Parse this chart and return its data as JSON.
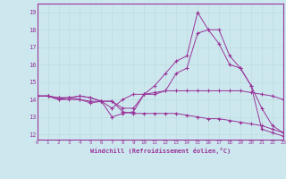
{
  "background_color": "#cce8ee",
  "line_color": "#993399",
  "grid_color": "#aadddd",
  "xlim": [
    0,
    23
  ],
  "ylim": [
    11.7,
    19.5
  ],
  "xlabel": "Windchill (Refroidissement éolien,°C)",
  "yticks": [
    12,
    13,
    14,
    15,
    16,
    17,
    18,
    19
  ],
  "xticks": [
    0,
    1,
    2,
    3,
    4,
    5,
    6,
    7,
    8,
    9,
    10,
    11,
    12,
    13,
    14,
    15,
    16,
    17,
    18,
    19,
    20,
    21,
    22,
    23
  ],
  "lines": [
    [
      14.2,
      14.2,
      14.1,
      14.1,
      14.2,
      14.1,
      13.9,
      13.0,
      13.2,
      13.3,
      14.3,
      14.3,
      14.5,
      15.5,
      15.8,
      17.8,
      18.0,
      17.2,
      16.0,
      15.8,
      14.8,
      12.3,
      12.1,
      11.9
    ],
    [
      14.2,
      14.2,
      14.1,
      14.1,
      14.2,
      14.1,
      13.9,
      13.5,
      14.0,
      14.3,
      14.3,
      14.4,
      14.5,
      14.5,
      14.5,
      14.5,
      14.5,
      14.5,
      14.5,
      14.5,
      14.4,
      14.3,
      14.2,
      14.0
    ],
    [
      14.2,
      14.2,
      14.0,
      14.0,
      14.0,
      13.9,
      13.9,
      13.9,
      13.5,
      13.5,
      14.3,
      14.8,
      15.5,
      16.2,
      16.5,
      19.0,
      18.0,
      18.0,
      16.5,
      15.8,
      14.8,
      13.5,
      12.5,
      12.1
    ],
    [
      14.2,
      14.2,
      14.0,
      14.1,
      14.0,
      13.8,
      13.9,
      13.9,
      13.3,
      13.2,
      13.2,
      13.2,
      13.2,
      13.2,
      13.1,
      13.0,
      12.9,
      12.9,
      12.8,
      12.7,
      12.6,
      12.5,
      12.3,
      12.1
    ]
  ],
  "figsize": [
    3.2,
    2.0
  ],
  "dpi": 100
}
